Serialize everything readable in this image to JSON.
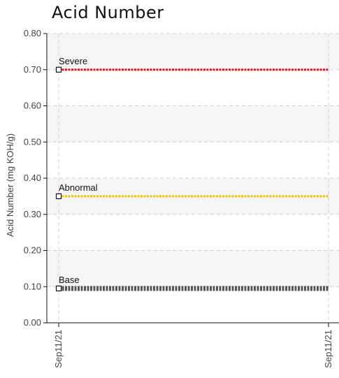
{
  "chart_data": {
    "type": "line",
    "title": "Acid Number",
    "ylabel": "Acid Number (mg KOH/g)",
    "xlabel": "",
    "ylim": [
      0.0,
      0.8
    ],
    "yticks": [
      "0.00",
      "0.10",
      "0.20",
      "0.30",
      "0.40",
      "0.50",
      "0.60",
      "0.70",
      "0.80"
    ],
    "x": [
      "Sep11/21",
      "Sep11/21"
    ],
    "grid": true,
    "series": [
      {
        "name": "Severe",
        "values": [
          0.7,
          0.7
        ],
        "color": "#e8141c",
        "style": "dotted"
      },
      {
        "name": "Abnormal",
        "values": [
          0.35,
          0.35
        ],
        "color": "#f2c200",
        "style": "dotted"
      },
      {
        "name": "Base",
        "values": [
          0.095,
          0.095
        ],
        "color": "#555555",
        "style": "dotted-thick"
      }
    ],
    "band_colors": [
      "#f5f5f5",
      "#ffffff"
    ],
    "axis_color": "#111111",
    "grid_color": "#d0d0d0"
  }
}
